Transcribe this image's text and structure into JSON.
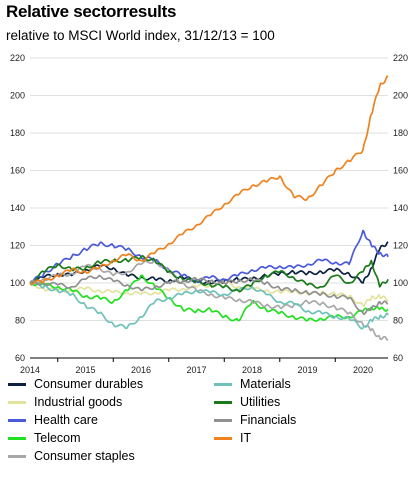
{
  "header": {
    "title": "Relative sectorresults",
    "subtitle": "relative to MSCI World index, 31/12/13 = 100"
  },
  "chart_data": {
    "type": "line",
    "title": "Relative sectorresults",
    "subtitle": "relative to MSCI World index, 31/12/13 = 100",
    "xlabel": "",
    "ylabel": "",
    "x_ticks": [
      "2014",
      "2015",
      "2016",
      "2017",
      "2018",
      "2019",
      "2020"
    ],
    "xlim": [
      2014.0,
      2020.45
    ],
    "ylim": [
      60,
      220
    ],
    "y_ticks": [
      60,
      80,
      100,
      120,
      140,
      160,
      180,
      200,
      220
    ],
    "y_axis_both_sides": true,
    "grid": "horizontal",
    "legend_position": "bottom",
    "x": [
      2014.0,
      2014.25,
      2014.5,
      2014.75,
      2015.0,
      2015.25,
      2015.5,
      2015.75,
      2016.0,
      2016.25,
      2016.5,
      2016.75,
      2017.0,
      2017.25,
      2017.5,
      2017.75,
      2018.0,
      2018.25,
      2018.5,
      2018.75,
      2019.0,
      2019.25,
      2019.5,
      2019.75,
      2020.0,
      2020.15,
      2020.3,
      2020.45
    ],
    "series": [
      {
        "name": "Consumer durables",
        "color": "#0b2340",
        "values": [
          100,
          103,
          105,
          104,
          107,
          109,
          108,
          104,
          103,
          102,
          101,
          103,
          101,
          100,
          101,
          102,
          102,
          104,
          105,
          106,
          105,
          106,
          107,
          105,
          100,
          108,
          118,
          122
        ]
      },
      {
        "name": "Industrial goods",
        "color": "#e3e39e",
        "values": [
          100,
          97,
          96,
          96,
          97,
          96,
          95,
          95,
          94,
          95,
          96,
          97,
          98,
          99,
          100,
          98,
          97,
          96,
          95,
          96,
          94,
          95,
          94,
          93,
          88,
          92,
          93,
          91
        ]
      },
      {
        "name": "Health care",
        "color": "#4a5ad8",
        "values": [
          100,
          105,
          110,
          114,
          118,
          121,
          120,
          118,
          114,
          112,
          107,
          104,
          101,
          103,
          102,
          104,
          107,
          108,
          109,
          108,
          110,
          112,
          111,
          110,
          128,
          120,
          116,
          114
        ]
      },
      {
        "name": "Telecom",
        "color": "#22e022",
        "values": [
          100,
          99,
          98,
          96,
          93,
          92,
          90,
          96,
          104,
          98,
          92,
          86,
          85,
          86,
          82,
          80,
          90,
          86,
          84,
          82,
          80,
          81,
          82,
          82,
          85,
          87,
          86,
          86
        ]
      },
      {
        "name": "Consumer staples",
        "color": "#a8a8a8",
        "values": [
          100,
          102,
          104,
          105,
          109,
          108,
          104,
          106,
          110,
          112,
          106,
          100,
          96,
          94,
          92,
          91,
          90,
          88,
          87,
          88,
          90,
          89,
          87,
          84,
          78,
          75,
          71,
          70
        ]
      },
      {
        "name": "Materials",
        "color": "#6ec2ba",
        "values": [
          100,
          98,
          96,
          94,
          88,
          84,
          78,
          76,
          82,
          90,
          92,
          94,
          96,
          95,
          94,
          96,
          98,
          94,
          90,
          89,
          85,
          84,
          82,
          81,
          76,
          80,
          82,
          83
        ]
      },
      {
        "name": "Utilities",
        "color": "#1a7a1a",
        "values": [
          100,
          106,
          110,
          107,
          108,
          111,
          112,
          112,
          114,
          112,
          106,
          102,
          101,
          99,
          98,
          96,
          99,
          104,
          106,
          103,
          99,
          98,
          104,
          100,
          106,
          112,
          98,
          102
        ]
      },
      {
        "name": "Financials",
        "color": "#909090",
        "values": [
          100,
          100,
          99,
          98,
          102,
          104,
          101,
          99,
          96,
          98,
          100,
          101,
          102,
          101,
          100,
          101,
          102,
          100,
          97,
          96,
          95,
          94,
          93,
          92,
          84,
          86,
          90,
          89
        ]
      },
      {
        "name": "IT",
        "color": "#f0821e",
        "values": [
          100,
          101,
          104,
          107,
          106,
          108,
          112,
          115,
          112,
          116,
          121,
          126,
          131,
          136,
          142,
          147,
          152,
          154,
          157,
          146,
          145,
          152,
          160,
          165,
          171,
          190,
          205,
          210
        ]
      }
    ]
  }
}
